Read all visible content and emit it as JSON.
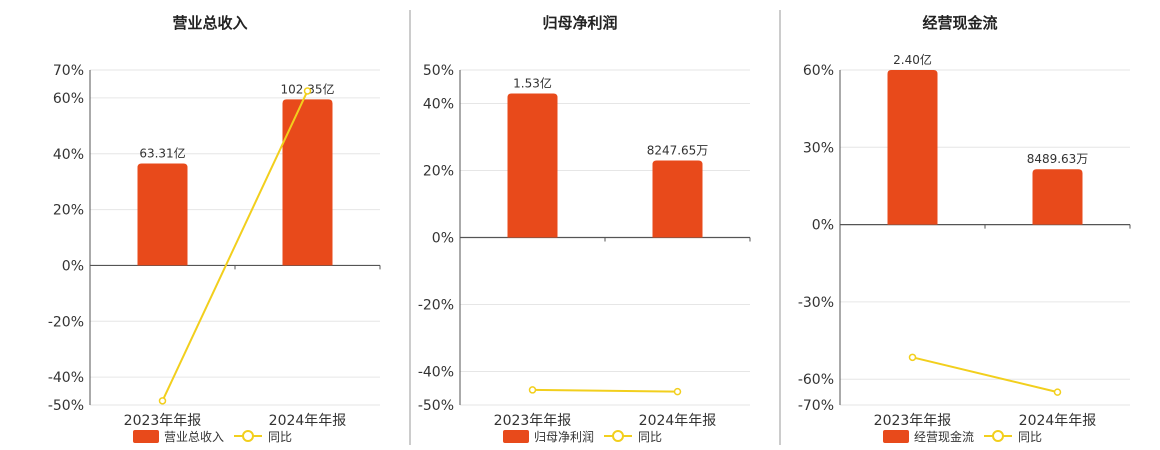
{
  "colors": {
    "bar": "#e84a1b",
    "line": "#f2cf1d",
    "axis": "#555555",
    "grid": "#e6e6e6",
    "divider": "#999999"
  },
  "chart_data": [
    {
      "type": "bar",
      "title": "营业总收入",
      "categories": [
        "2023年年报",
        "2024年年报"
      ],
      "bar_labels": [
        "63.31亿",
        "102.35亿"
      ],
      "series": [
        {
          "name": "营业总收入",
          "type": "bar",
          "values": [
            36.5,
            59.5
          ]
        },
        {
          "name": "同比",
          "type": "line",
          "values": [
            -48.5,
            62.5
          ]
        }
      ],
      "yticks": [
        70,
        60,
        40,
        20,
        0,
        -20,
        -40,
        -50
      ],
      "ylim": [
        -50,
        70
      ],
      "legend": "bottom"
    },
    {
      "type": "bar",
      "title": "归母净利润",
      "categories": [
        "2023年年报",
        "2024年年报"
      ],
      "bar_labels": [
        "1.53亿",
        "8247.65万"
      ],
      "series": [
        {
          "name": "归母净利润",
          "type": "bar",
          "values": [
            43,
            23
          ]
        },
        {
          "name": "同比",
          "type": "line",
          "values": [
            -45.5,
            -46
          ]
        }
      ],
      "yticks": [
        50,
        40,
        20,
        0,
        -20,
        -40,
        -50
      ],
      "ylim": [
        -50,
        50
      ],
      "legend": "bottom"
    },
    {
      "type": "bar",
      "title": "经营现金流",
      "categories": [
        "2023年年报",
        "2024年年报"
      ],
      "bar_labels": [
        "2.40亿",
        "8489.63万"
      ],
      "series": [
        {
          "name": "经营现金流",
          "type": "bar",
          "values": [
            60,
            21.5
          ]
        },
        {
          "name": "同比",
          "type": "line",
          "values": [
            -51.5,
            -65
          ]
        }
      ],
      "yticks": [
        60,
        30,
        0,
        -30,
        -60,
        -70
      ],
      "ylim": [
        -70,
        60
      ],
      "legend": "bottom"
    }
  ]
}
